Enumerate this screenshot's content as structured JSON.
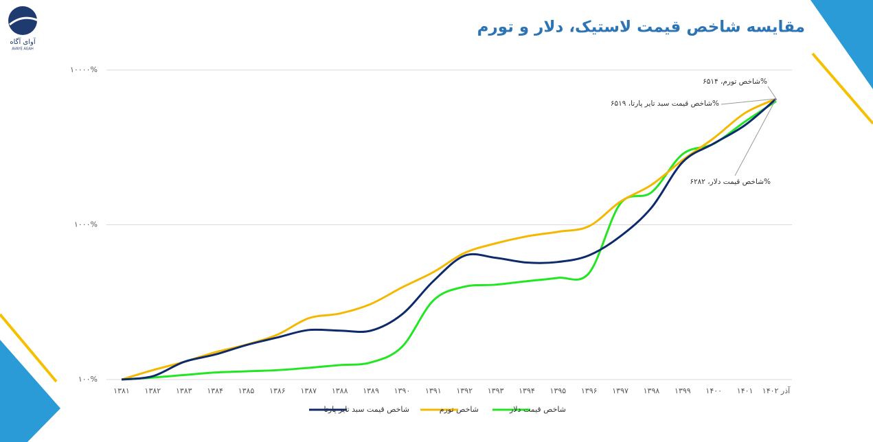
{
  "logo": {
    "name": "آوای آگاه",
    "latin": "AVAYE AGAH"
  },
  "chart_data": {
    "type": "line",
    "title": "مقایسه شاخص قیمت لاستیک، دلار و تورم",
    "categories": [
      "۱۳۸۱",
      "۱۳۸۲",
      "۱۳۸۳",
      "۱۳۸۴",
      "۱۳۸۵",
      "۱۳۸۶",
      "۱۳۸۷",
      "۱۳۸۸",
      "۱۳۸۹",
      "۱۳۹۰",
      "۱۳۹۱",
      "۱۳۹۲",
      "۱۳۹۳",
      "۱۳۹۴",
      "۱۳۹۵",
      "۱۳۹۶",
      "۱۳۹۷",
      "۱۳۹۸",
      "۱۳۹۹",
      "۱۴۰۰",
      "۱۴۰۱",
      "آذر ۱۴۰۲"
    ],
    "series": [
      {
        "name": "شاخص قیمت سبد تایر پارتا",
        "color": "#0d2a6b",
        "values": [
          100,
          105,
          130,
          145,
          167,
          187,
          209,
          207,
          207,
          264,
          432,
          631,
          612,
          570,
          575,
          635,
          842,
          1290,
          2540,
          3350,
          4400,
          6519
        ]
      },
      {
        "name": "شاخص تورم",
        "color": "#f5b800",
        "values": [
          100,
          115,
          130,
          150,
          168,
          195,
          249,
          267,
          308,
          394,
          494,
          657,
          758,
          842,
          901,
          980,
          1410,
          1810,
          2620,
          3630,
          5270,
          6514
        ]
      },
      {
        "name": "شاخص قیمت دلار",
        "color": "#22e622",
        "values": [
          100,
          103,
          107,
          111,
          113,
          115,
          119,
          124,
          129,
          163,
          324,
          398,
          410,
          432,
          454,
          488,
          1370,
          1620,
          2860,
          3340,
          4640,
          6282
        ]
      }
    ],
    "annotations": [
      "شاخص تورم، ۶۵۱۴%",
      "شاخص قیمت سبد تایر پارتا، ۶۵۱۹%",
      "شاخص قیمت دلار، ۶۲۸۲%"
    ],
    "log_scale": true,
    "ylim": [
      100,
      10000
    ],
    "yticks": [
      {
        "value": 100,
        "label": "۱۰۰%"
      },
      {
        "value": 1000,
        "label": "۱۰۰۰%"
      },
      {
        "value": 10000,
        "label": "۱۰۰۰۰%"
      }
    ],
    "grid": true,
    "legend": "bottom"
  }
}
